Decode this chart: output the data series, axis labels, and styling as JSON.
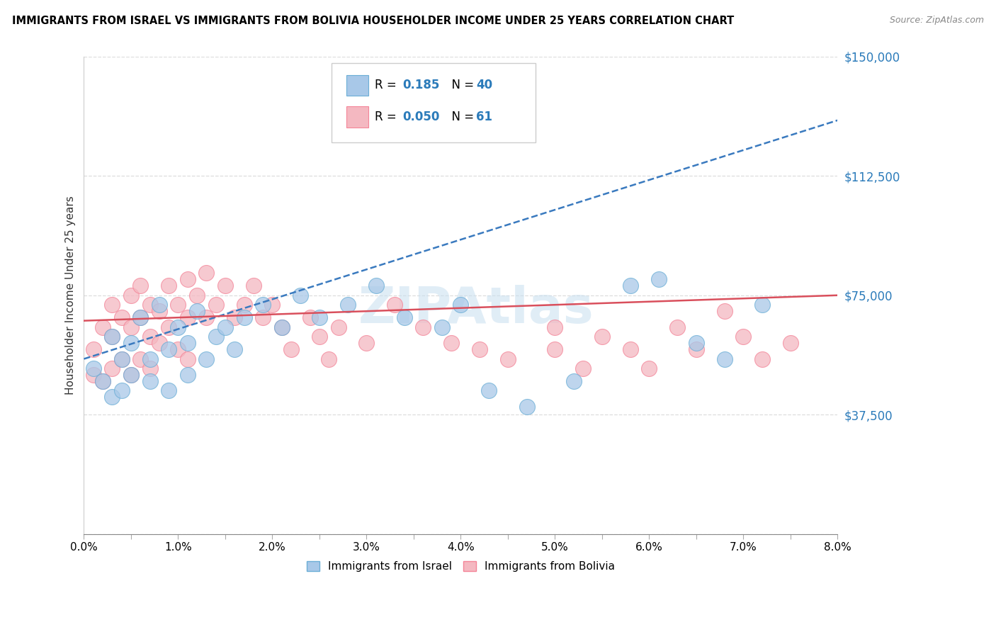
{
  "title": "IMMIGRANTS FROM ISRAEL VS IMMIGRANTS FROM BOLIVIA HOUSEHOLDER INCOME UNDER 25 YEARS CORRELATION CHART",
  "source": "Source: ZipAtlas.com",
  "ylabel": "Householder Income Under 25 years",
  "xlim": [
    0.0,
    0.08
  ],
  "ylim": [
    0,
    150000
  ],
  "yticks": [
    0,
    37500,
    75000,
    112500,
    150000
  ],
  "xtick_labels": [
    "0.0%",
    "",
    "1.0%",
    "",
    "2.0%",
    "",
    "3.0%",
    "",
    "4.0%",
    "",
    "5.0%",
    "",
    "6.0%",
    "",
    "7.0%",
    "",
    "8.0%"
  ],
  "xticks": [
    0.0,
    0.005,
    0.01,
    0.015,
    0.02,
    0.025,
    0.03,
    0.035,
    0.04,
    0.045,
    0.05,
    0.055,
    0.06,
    0.065,
    0.07,
    0.075,
    0.08
  ],
  "israel_color": "#a8c8e8",
  "israel_edge_color": "#6baed6",
  "bolivia_color": "#f4b8c1",
  "bolivia_edge_color": "#f48498",
  "israel_line_color": "#3a7abf",
  "bolivia_line_color": "#d94f5c",
  "israel_R": 0.185,
  "israel_N": 40,
  "bolivia_R": 0.05,
  "bolivia_N": 61,
  "watermark": "ZIPAtlas",
  "legend_label_israel": "Immigrants from Israel",
  "legend_label_bolivia": "Immigrants from Bolivia",
  "israel_x": [
    0.001,
    0.002,
    0.003,
    0.003,
    0.004,
    0.004,
    0.005,
    0.005,
    0.006,
    0.007,
    0.007,
    0.008,
    0.009,
    0.009,
    0.01,
    0.011,
    0.011,
    0.012,
    0.013,
    0.014,
    0.015,
    0.016,
    0.017,
    0.019,
    0.021,
    0.023,
    0.025,
    0.028,
    0.031,
    0.034,
    0.038,
    0.04,
    0.043,
    0.047,
    0.052,
    0.058,
    0.061,
    0.065,
    0.068,
    0.072
  ],
  "israel_y": [
    52000,
    48000,
    43000,
    62000,
    55000,
    45000,
    60000,
    50000,
    68000,
    55000,
    48000,
    72000,
    58000,
    45000,
    65000,
    60000,
    50000,
    70000,
    55000,
    62000,
    65000,
    58000,
    68000,
    72000,
    65000,
    75000,
    68000,
    72000,
    78000,
    68000,
    65000,
    72000,
    45000,
    40000,
    48000,
    78000,
    80000,
    60000,
    55000,
    72000
  ],
  "bolivia_x": [
    0.001,
    0.001,
    0.002,
    0.002,
    0.003,
    0.003,
    0.003,
    0.004,
    0.004,
    0.005,
    0.005,
    0.005,
    0.006,
    0.006,
    0.006,
    0.007,
    0.007,
    0.007,
    0.008,
    0.008,
    0.009,
    0.009,
    0.01,
    0.01,
    0.011,
    0.011,
    0.011,
    0.012,
    0.013,
    0.013,
    0.014,
    0.015,
    0.016,
    0.017,
    0.018,
    0.019,
    0.02,
    0.021,
    0.022,
    0.024,
    0.025,
    0.026,
    0.027,
    0.03,
    0.033,
    0.036,
    0.039,
    0.042,
    0.045,
    0.05,
    0.05,
    0.053,
    0.055,
    0.058,
    0.06,
    0.063,
    0.065,
    0.068,
    0.07,
    0.072,
    0.075
  ],
  "bolivia_y": [
    58000,
    50000,
    65000,
    48000,
    72000,
    62000,
    52000,
    68000,
    55000,
    75000,
    65000,
    50000,
    78000,
    68000,
    55000,
    72000,
    62000,
    52000,
    70000,
    60000,
    78000,
    65000,
    72000,
    58000,
    80000,
    68000,
    55000,
    75000,
    82000,
    68000,
    72000,
    78000,
    68000,
    72000,
    78000,
    68000,
    72000,
    65000,
    58000,
    68000,
    62000,
    55000,
    65000,
    60000,
    72000,
    65000,
    60000,
    58000,
    55000,
    65000,
    58000,
    52000,
    62000,
    58000,
    52000,
    65000,
    58000,
    70000,
    62000,
    55000,
    60000
  ]
}
